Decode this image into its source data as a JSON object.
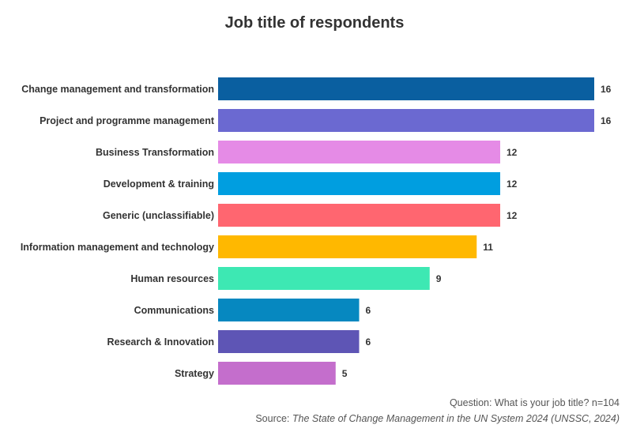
{
  "chart_data": {
    "type": "bar",
    "orientation": "horizontal",
    "title": "Job title of respondents",
    "categories": [
      "Change management and transformation",
      "Project and programme management",
      "Business Transformation",
      "Development & training",
      "Generic (unclassifiable)",
      "Information management and technology",
      "Human resources",
      "Communications",
      "Research & Innovation",
      "Strategy"
    ],
    "values": [
      16,
      16,
      12,
      12,
      12,
      11,
      9,
      6,
      6,
      5
    ],
    "colors": [
      "#0a5fa0",
      "#6b69d1",
      "#e58be6",
      "#009ee0",
      "#ff6670",
      "#ffb800",
      "#3de8b3",
      "#0688c0",
      "#5e55b5",
      "#c46ecc"
    ],
    "xlim": [
      0,
      16
    ],
    "grid": false,
    "legend": "none"
  },
  "footer": {
    "question": "Question: What is your job title? n=104",
    "source_prefix": "Source: ",
    "source_work": "The State of Change Management in the UN System 2024 (UNSSC, 2024)"
  }
}
